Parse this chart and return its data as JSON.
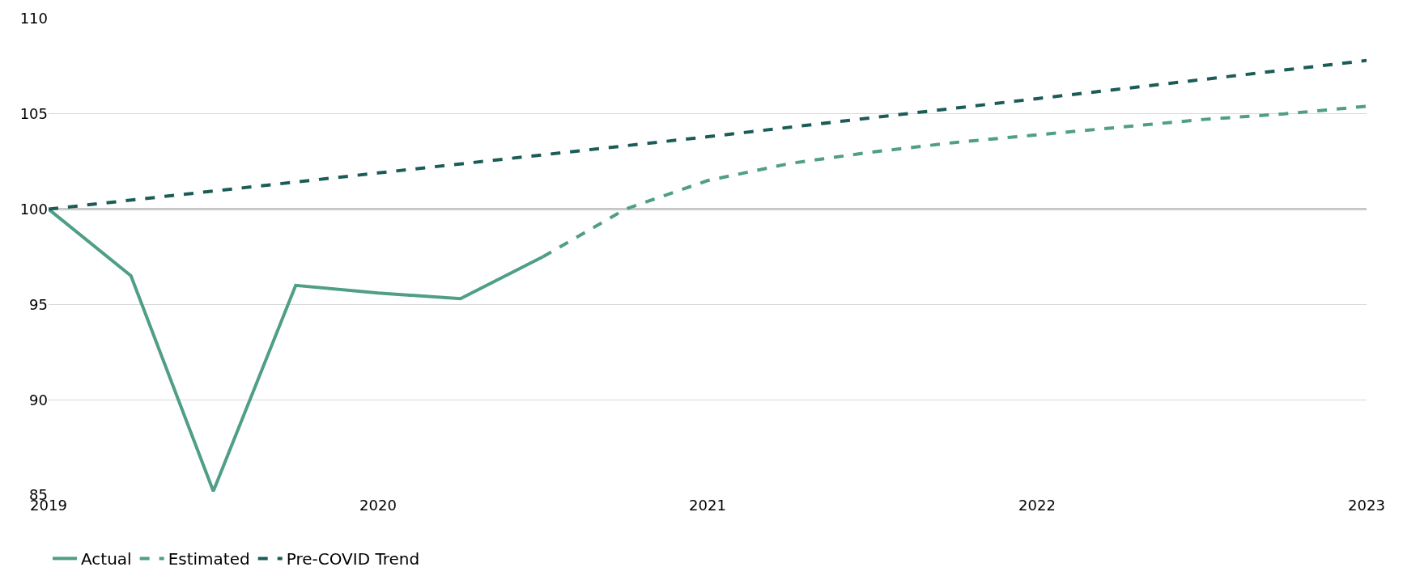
{
  "chart_data": {
    "type": "line",
    "xlim": [
      2019,
      2023
    ],
    "xticks": [
      2019,
      2020,
      2021,
      2022,
      2023
    ],
    "ylim": [
      85,
      110
    ],
    "yticks": [
      85,
      90,
      95,
      100,
      105,
      110
    ],
    "grid": "y",
    "legend": "bottom left",
    "series": [
      {
        "name": "Actual",
        "color": "#4f9e88",
        "line_style": "solid",
        "x": [
          2019,
          2019.25,
          2019.5,
          2019.75,
          2020,
          2020.25,
          2020.5
        ],
        "values": [
          100,
          96.5,
          85.2,
          96,
          95.6,
          95.3,
          97.5
        ]
      },
      {
        "name": "Estimated",
        "color": "#4f9e88",
        "line_style": "dashed",
        "x": [
          2020.5,
          2020.75,
          2021,
          2021.25,
          2021.5,
          2021.75,
          2022,
          2022.25,
          2022.5,
          2022.75,
          2023
        ],
        "values": [
          97.5,
          100,
          101.5,
          102.4,
          103,
          103.5,
          103.9,
          104.3,
          104.7,
          105,
          105.4
        ]
      },
      {
        "name": "Pre-COVID Trend",
        "color": "#1b5c56",
        "line_style": "dashed",
        "x": [
          2019,
          2020,
          2021,
          2022,
          2023
        ],
        "values": [
          100,
          101.9,
          103.8,
          105.8,
          107.8
        ]
      }
    ],
    "ref_lines": [
      {
        "axis": "y",
        "value": 100,
        "color": "#000000",
        "line_style": "solid"
      }
    ]
  }
}
